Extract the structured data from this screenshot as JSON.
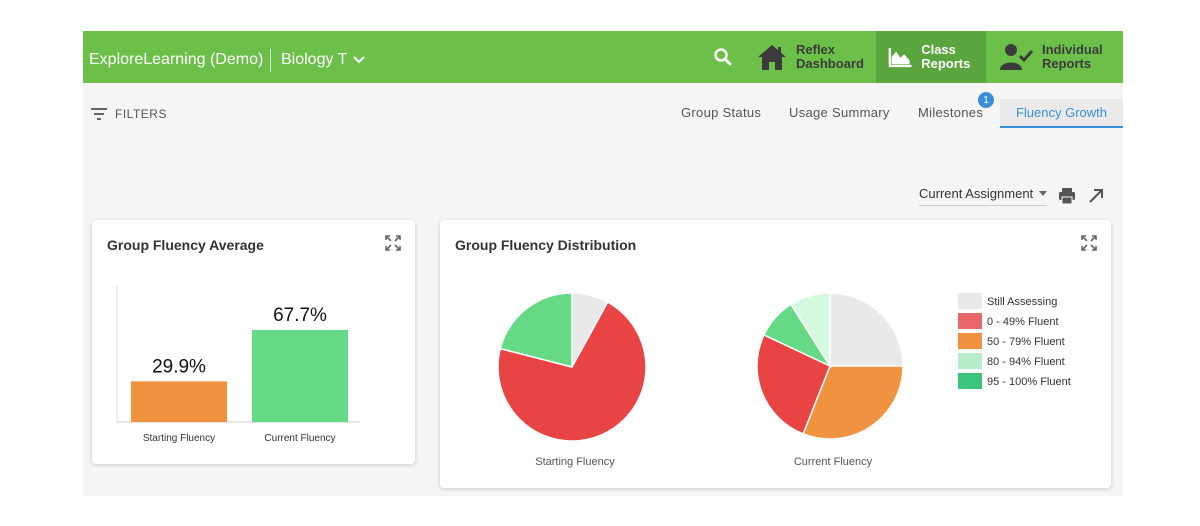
{
  "header": {
    "brand": "ExploreLearning (Demo)",
    "class_name": "Biology T",
    "nav": [
      {
        "line1": "Reflex",
        "line2": "Dashboard",
        "icon": "house-icon"
      },
      {
        "line1": "Class",
        "line2": "Reports",
        "icon": "area-chart-icon",
        "active": true
      },
      {
        "line1": "Individual",
        "line2": "Reports",
        "icon": "person-check-icon"
      }
    ],
    "colors": {
      "bar": "#6cc04a",
      "active": "#5aa53d"
    }
  },
  "subbar": {
    "filters_label": "FILTERS",
    "tabs": [
      "Group Status",
      "Usage Summary",
      "Milestones",
      "Fluency Growth"
    ],
    "active_tab": "Fluency Growth",
    "milestones_badge": "1"
  },
  "toolbar": {
    "assignment_select": "Current Assignment"
  },
  "cards": {
    "average_title": "Group Fluency Average",
    "distribution_title": "Group Fluency Distribution"
  },
  "chart_data": [
    {
      "type": "bar",
      "title": "Group Fluency Average",
      "categories": [
        "Starting Fluency",
        "Current Fluency"
      ],
      "values": [
        29.9,
        67.7
      ],
      "labels": [
        "29.9%",
        "67.7%"
      ],
      "colors": [
        "#ef9341",
        "#66d987"
      ],
      "ylim": [
        0,
        100
      ],
      "grid": false
    },
    {
      "type": "pie",
      "title": "Group Fluency Distribution",
      "legend": {
        "placement": "right",
        "entries": [
          {
            "label": "Still Assessing",
            "color": "#e9e9e9"
          },
          {
            "label": "0 - 49% Fluent",
            "color": "#e8676a"
          },
          {
            "label": "50 - 79% Fluent",
            "color": "#ef9341"
          },
          {
            "label": "80 - 94% Fluent",
            "color": "#b7ecca"
          },
          {
            "label": "95 - 100% Fluent",
            "color": "#3cc47c"
          }
        ]
      },
      "pies": [
        {
          "name": "Starting Fluency",
          "slices": [
            {
              "category": "Still Assessing",
              "value": 8,
              "color": "#e9e9e9"
            },
            {
              "category": "0 - 49% Fluent",
              "value": 71,
              "color": "#e84444"
            },
            {
              "category": "95 - 100% Fluent",
              "value": 21,
              "color": "#66d987"
            }
          ]
        },
        {
          "name": "Current Fluency",
          "slices": [
            {
              "category": "Still Assessing",
              "value": 25,
              "color": "#e9e9e9"
            },
            {
              "category": "50 - 79% Fluent",
              "value": 31,
              "color": "#ef9341"
            },
            {
              "category": "0 - 49% Fluent",
              "value": 26,
              "color": "#e84444"
            },
            {
              "category": "95 - 100% Fluent",
              "value": 9,
              "color": "#66d987"
            },
            {
              "category": "80 - 94% Fluent",
              "value": 9,
              "color": "#d6fadf"
            }
          ]
        }
      ]
    }
  ]
}
